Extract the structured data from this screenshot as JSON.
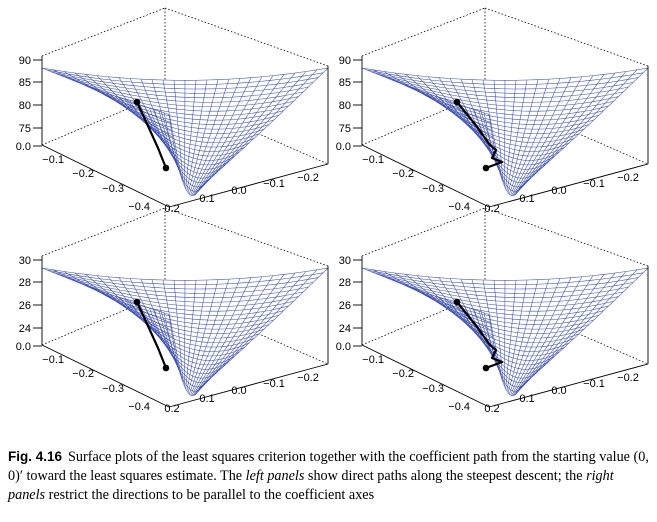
{
  "figure": {
    "panels": [
      {
        "id": "top-left",
        "z_ticks": [
          "90",
          "85",
          "80",
          "75",
          "0.0"
        ],
        "x_ticks": [
          "−0.1",
          "−0.2",
          "−0.3",
          "−0.4"
        ],
        "y_ticks": [
          "0.2",
          "0.1",
          "0.0",
          "−0.1",
          "−0.2"
        ],
        "path_kind": "direct"
      },
      {
        "id": "top-right",
        "z_ticks": [
          "90",
          "85",
          "80",
          "75",
          "0.0"
        ],
        "x_ticks": [
          "−0.1",
          "−0.2",
          "−0.3",
          "−0.4"
        ],
        "y_ticks": [
          "0.2",
          "0.1",
          "0.0",
          "−0.1",
          "−0.2"
        ],
        "path_kind": "axis-parallel"
      },
      {
        "id": "bottom-left",
        "z_ticks": [
          "30",
          "28",
          "26",
          "24",
          "0.0"
        ],
        "x_ticks": [
          "−0.1",
          "−0.2",
          "−0.3",
          "−0.4"
        ],
        "y_ticks": [
          "0.2",
          "0.1",
          "0.0",
          "−0.1",
          "−0.2"
        ],
        "path_kind": "direct"
      },
      {
        "id": "bottom-right",
        "z_ticks": [
          "30",
          "28",
          "26",
          "24",
          "0.0"
        ],
        "x_ticks": [
          "−0.1",
          "−0.2",
          "−0.3",
          "−0.4"
        ],
        "y_ticks": [
          "0.2",
          "0.1",
          "0.0",
          "−0.1",
          "−0.2"
        ],
        "path_kind": "axis-parallel"
      }
    ],
    "colors": {
      "mesh": "#3d4fb0",
      "mesh_fill": "#ffffff",
      "path": "#000000",
      "frame": "#000000"
    }
  },
  "caption": {
    "label": "Fig. 4.16",
    "part1": "Surface plots of the least squares criterion together with the coefficient path from the starting value ",
    "start_value": "(0, 0)′",
    "part2": " toward the least squares estimate. The ",
    "left_panels": "left panels",
    "part3": " show direct paths along the steepest descent; the ",
    "right_panels": "right panels",
    "part4": " restrict the directions to be parallel to the coefficient axes"
  }
}
